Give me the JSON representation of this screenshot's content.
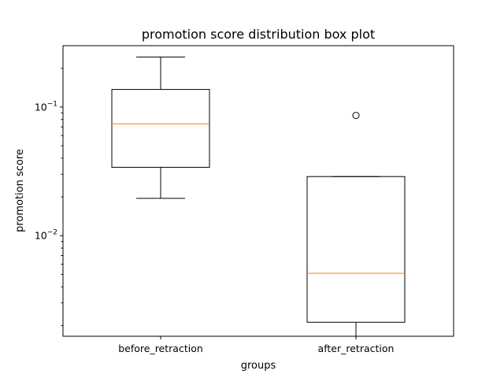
{
  "chart_data": {
    "type": "box",
    "title": "promotion score distribution box plot",
    "xlabel": "groups",
    "ylabel": "promotion score",
    "yscale": "log",
    "ylim": [
      0.00165,
      0.3
    ],
    "yticks": [
      {
        "value": 0.1,
        "base": "10",
        "exp": "−1"
      },
      {
        "value": 0.01,
        "base": "10",
        "exp": "−2"
      }
    ],
    "categories": [
      "before_retraction",
      "after_retraction"
    ],
    "boxes": [
      {
        "label": "before_retraction",
        "whisker_low": 0.0195,
        "q1": 0.034,
        "median": 0.074,
        "q3": 0.137,
        "whisker_high": 0.245,
        "outliers": []
      },
      {
        "label": "after_retraction",
        "whisker_low": 0.00165,
        "q1": 0.00212,
        "median": 0.0051,
        "q3": 0.0288,
        "whisker_high": 0.0288,
        "outliers": [
          0.086
        ]
      }
    ],
    "colors": {
      "box": "#000000",
      "median": "#ff7f0e"
    },
    "grid": false,
    "legend": null
  }
}
